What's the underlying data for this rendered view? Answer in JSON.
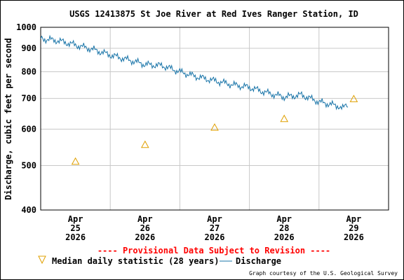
{
  "title": "USGS 12413875 St Joe River at Red Ives Ranger Station, ID",
  "provisional_notice": "---- Provisional Data Subject to Revision ----",
  "credit": "Graph courtesy of the U.S. Geological Survey",
  "legend": {
    "median_label": "Median daily statistic (28 years)",
    "discharge_label": "Discharge"
  },
  "colors": {
    "discharge": "#1874a8",
    "median": "#e0a000",
    "provisional": "#ff0000",
    "grid": "#c8c8c8"
  },
  "chart_data": {
    "type": "line",
    "title": "USGS 12413875 St Joe River at Red Ives Ranger Station, ID",
    "ylabel": "Discharge, cubic feet per second",
    "xlabel": "",
    "yscale": "log",
    "ylim": [
      400,
      1000
    ],
    "yticks": [
      400,
      500,
      600,
      700,
      800,
      900,
      1000
    ],
    "xlim": [
      "2026-04-24 12:00",
      "2026-04-29 12:00"
    ],
    "xticks": [
      {
        "line1": "Apr",
        "line2": "25",
        "line3": "2026"
      },
      {
        "line1": "Apr",
        "line2": "26",
        "line3": "2026"
      },
      {
        "line1": "Apr",
        "line2": "27",
        "line3": "2026"
      },
      {
        "line1": "Apr",
        "line2": "28",
        "line3": "2026"
      },
      {
        "line1": "Apr",
        "line2": "29",
        "line3": "2026"
      }
    ],
    "grid": true,
    "series": [
      {
        "name": "Discharge",
        "style": "line",
        "x": [
          "2026-04-24 12:00",
          "2026-04-24 18:00",
          "2026-04-25 00:00",
          "2026-04-25 06:00",
          "2026-04-25 12:00",
          "2026-04-25 18:00",
          "2026-04-26 00:00",
          "2026-04-26 06:00",
          "2026-04-26 12:00",
          "2026-04-26 18:00",
          "2026-04-27 00:00",
          "2026-04-27 06:00",
          "2026-04-27 12:00",
          "2026-04-27 18:00",
          "2026-04-28 00:00",
          "2026-04-28 06:00",
          "2026-04-28 12:00",
          "2026-04-28 18:00",
          "2026-04-28 22:00"
        ],
        "values": [
          945,
          935,
          915,
          895,
          870,
          850,
          830,
          825,
          800,
          780,
          765,
          750,
          740,
          720,
          705,
          712,
          688,
          675,
          670
        ]
      },
      {
        "name": "Median daily statistic (28 years)",
        "style": "triangle",
        "x": [
          "2026-04-25 00:00",
          "2026-04-26 00:00",
          "2026-04-27 00:00",
          "2026-04-28 00:00",
          "2026-04-29 00:00"
        ],
        "values": [
          510,
          555,
          605,
          632,
          698
        ]
      }
    ]
  }
}
